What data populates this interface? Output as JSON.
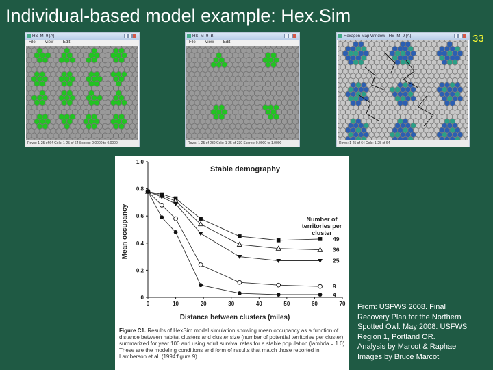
{
  "slide": {
    "title": "Individual-based model example: Hex.Sim",
    "number": "33",
    "credit_lines": [
      "From: USFWS 2008. Final",
      "Recovery Plan for the Northern",
      "Spotted Owl. May 2008. USFWS",
      "Region 1, Portland OR.",
      "Analysis by Marcot & Raphael",
      "Images by  Bruce Marcot"
    ]
  },
  "windows": [
    {
      "title": "HS_M_9 [A]",
      "menu": [
        "File",
        "View",
        "Edit"
      ],
      "status": "Rows: 1-25 of 64   Cols: 1-25 of 64   Scores: 0.0000 to 0.0000"
    },
    {
      "title": "HS_M_9 [B]",
      "menu": [
        "File",
        "View",
        "Edit"
      ],
      "status": "Rows: 1-25 of 230   Cols: 1-25 of 230   Scores: 0.0000 to 1.0000"
    },
    {
      "title": "Hexagon Map Window - HS_M_9 [A]",
      "menu": [],
      "status": "Rows: 1-25 of 64   Cols: 1-25 of 64"
    }
  ],
  "colors": {
    "background": "#1f5a44",
    "title_text": "#ffffff",
    "slide_number": "#ffff33",
    "hex_grey": "#9a9a9a",
    "hex_green": "#22c422",
    "hex_blue": "#2b5fb3",
    "hex_teal": "#2aa088"
  },
  "chart_data": {
    "type": "line",
    "title": "Stable demography",
    "xlabel": "Distance between clusters (miles)",
    "ylabel": "Mean occupancy",
    "xlim": [
      0,
      70
    ],
    "ylim": [
      0,
      1.0
    ],
    "xticks": [
      0,
      10,
      20,
      30,
      40,
      50,
      60,
      70
    ],
    "yticks": [
      0,
      0.2,
      0.4,
      0.6,
      0.8,
      1.0
    ],
    "ytick_labels": [
      "0",
      "0.2",
      "0.4",
      "0.6",
      "0.8",
      "1.0"
    ],
    "legend_title": [
      "Number of",
      "territories per",
      "cluster"
    ],
    "series": [
      {
        "name": "49",
        "marker": "square-filled",
        "x": [
          0,
          5,
          10,
          19,
          33,
          47,
          62
        ],
        "values": [
          0.78,
          0.76,
          0.73,
          0.58,
          0.45,
          0.42,
          0.43
        ]
      },
      {
        "name": "36",
        "marker": "triangle-open",
        "x": [
          0,
          5,
          10,
          19,
          33,
          47,
          62
        ],
        "values": [
          0.78,
          0.75,
          0.71,
          0.54,
          0.39,
          0.36,
          0.35
        ]
      },
      {
        "name": "25",
        "marker": "triangle-down-filled",
        "x": [
          0,
          5,
          10,
          19,
          33,
          47,
          62
        ],
        "values": [
          0.78,
          0.74,
          0.69,
          0.47,
          0.3,
          0.27,
          0.27
        ]
      },
      {
        "name": "9",
        "marker": "circle-open",
        "x": [
          0,
          5,
          10,
          19,
          33,
          47,
          62
        ],
        "values": [
          0.78,
          0.68,
          0.58,
          0.24,
          0.11,
          0.09,
          0.08
        ]
      },
      {
        "name": "4",
        "marker": "circle-filled",
        "x": [
          0,
          5,
          10,
          19,
          33,
          47,
          62
        ],
        "values": [
          0.78,
          0.59,
          0.48,
          0.09,
          0.03,
          0.02,
          0.02
        ]
      }
    ],
    "caption_bold": "Figure C1.",
    "caption": " Results of HexSim model simulation showing mean occupancy as a function of distance between habitat clusters and cluster size (number of potential territories per cluster), summarized for year 100 and using adult survival rates for a stable population (lambda = 1.0). These are the modeling conditions and form of results that match those reported in Lamberson et al. (1994:figure 9)."
  }
}
